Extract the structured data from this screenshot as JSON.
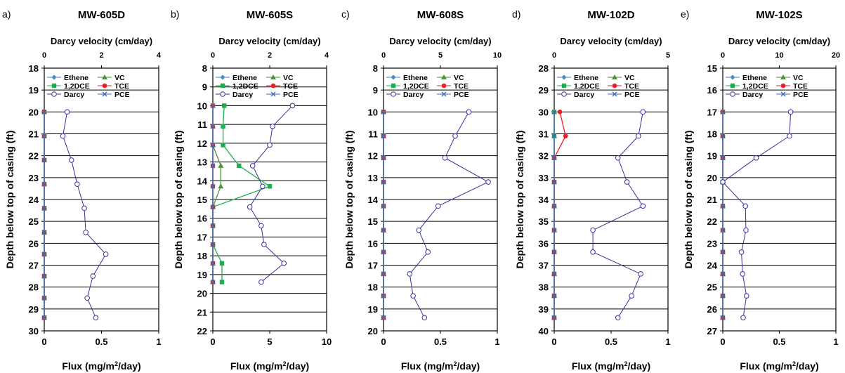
{
  "colors": {
    "ethene": "#4a86c0",
    "vc": "#4e8f3b",
    "dce": "#1fae4f",
    "tce": "#ee1c24",
    "darcy": "#333399",
    "pce": "#3b6fb5",
    "grid": "#000000"
  },
  "legend_labels": [
    "Ethene",
    "VC",
    "1,2DCE",
    "TCE",
    "Darcy",
    "PCE"
  ],
  "chart_data": [
    {
      "type": "line",
      "panel_label": "a)",
      "title": "MW-605D",
      "xlabel_top": "Darcy velocity (cm/day)",
      "xlabel_bottom": "Flux (mg/m²/day)",
      "ylabel": "Depth below top of casing (ft)",
      "ylim": [
        18,
        30
      ],
      "yticks": [
        18,
        19,
        20,
        21,
        22,
        23,
        24,
        25,
        26,
        27,
        28,
        29,
        30
      ],
      "xlim_top": [
        0,
        4
      ],
      "xticks_top": [
        0,
        2,
        4
      ],
      "xlim_bottom": [
        0,
        1
      ],
      "xticks_bottom": [
        0,
        0.5,
        1
      ],
      "xticklabels_bottom": [
        "0",
        "0.5",
        "1"
      ],
      "series": [
        {
          "name": "Ethene",
          "axis": "bottom",
          "depth": [
            20,
            21.1,
            22.2,
            23.3,
            24.4,
            25.5,
            26.5,
            27.5,
            28.5,
            29.4
          ],
          "values": [
            0,
            0,
            0,
            0,
            0,
            0,
            0,
            0,
            0,
            0
          ]
        },
        {
          "name": "VC",
          "axis": "bottom",
          "depth": [
            20,
            21.1,
            22.2,
            23.3,
            24.4,
            25.5,
            26.5,
            27.5,
            28.5,
            29.4
          ],
          "values": [
            0,
            0,
            0,
            0,
            0,
            0,
            0,
            0,
            0,
            0
          ]
        },
        {
          "name": "1,2DCE",
          "axis": "bottom",
          "depth": [
            20,
            21.1,
            22.2,
            23.3,
            24.4,
            25.5,
            26.5,
            27.5,
            28.5,
            29.4
          ],
          "values": [
            0,
            0,
            0,
            0,
            0,
            0,
            0,
            0,
            0,
            0
          ]
        },
        {
          "name": "TCE",
          "axis": "bottom",
          "depth": [
            20,
            21.1,
            22.2,
            23.3,
            24.4,
            25.5,
            26.5,
            27.5,
            28.5,
            29.4
          ],
          "values": [
            0,
            0,
            0,
            0,
            0,
            0,
            0,
            0,
            0,
            0
          ]
        },
        {
          "name": "PCE",
          "axis": "bottom",
          "depth": [
            20,
            21.1,
            22.2,
            23.3,
            24.4,
            25.5,
            26.5,
            27.5,
            28.5,
            29.4
          ],
          "values": [
            0,
            0,
            0,
            0,
            0,
            0,
            0,
            0,
            0,
            0
          ]
        },
        {
          "name": "Darcy",
          "axis": "top",
          "depth": [
            20,
            21.1,
            22.2,
            23.3,
            24.4,
            25.5,
            26.5,
            27.5,
            28.5,
            29.4
          ],
          "values": [
            0.8,
            0.65,
            0.95,
            1.15,
            1.4,
            1.45,
            2.15,
            1.7,
            1.5,
            1.8
          ]
        }
      ]
    },
    {
      "type": "line",
      "panel_label": "b)",
      "title": "MW-605S",
      "xlabel_top": "Darcy velocity (cm/day)",
      "xlabel_bottom": "Flux (mg/m²/day)",
      "ylabel": "Depth below top of casing (ft)",
      "ylim": [
        8,
        22
      ],
      "yticks": [
        8,
        9,
        10,
        11,
        12,
        13,
        14,
        15,
        16,
        17,
        18,
        19,
        20,
        21,
        22
      ],
      "xlim_top": [
        0,
        4
      ],
      "xticks_top": [
        0,
        2,
        4
      ],
      "xlim_bottom": [
        0,
        10
      ],
      "xticks_bottom": [
        0,
        5,
        10
      ],
      "xticklabels_bottom": [
        "0",
        "5",
        "10"
      ],
      "series": [
        {
          "name": "Ethene",
          "axis": "bottom",
          "depth": [
            10,
            11.1,
            12.1,
            13.2,
            14.3,
            15.4,
            16.4,
            17.4,
            18.4,
            19.4
          ],
          "values": [
            0,
            0,
            0,
            0,
            0,
            0,
            0,
            0,
            0,
            0
          ]
        },
        {
          "name": "VC",
          "axis": "bottom",
          "depth": [
            10,
            11.1,
            12.1,
            13.2,
            14.3,
            15.4,
            16.4,
            17.4,
            18.4,
            19.4
          ],
          "values": [
            0,
            0,
            0,
            0.7,
            0.7,
            0,
            0,
            0,
            0,
            0
          ]
        },
        {
          "name": "1,2DCE",
          "axis": "bottom",
          "depth": [
            10,
            11.1,
            12.1,
            13.2,
            14.3,
            15.4,
            16.4,
            17.4,
            18.4,
            19.4
          ],
          "values": [
            1.0,
            0.9,
            0.9,
            2.3,
            5.0,
            0,
            0,
            0,
            0.8,
            0.8
          ]
        },
        {
          "name": "TCE",
          "axis": "bottom",
          "depth": [
            10,
            11.1,
            12.1,
            13.2,
            14.3,
            15.4,
            16.4,
            17.4,
            18.4,
            19.4
          ],
          "values": [
            0,
            0,
            0,
            0,
            0,
            0,
            0,
            0,
            0,
            0
          ]
        },
        {
          "name": "PCE",
          "axis": "bottom",
          "depth": [
            10,
            11.1,
            12.1,
            13.2,
            14.3,
            15.4,
            16.4,
            17.4,
            18.4,
            19.4
          ],
          "values": [
            0,
            0,
            0,
            0,
            0,
            0,
            0,
            0,
            0,
            0
          ]
        },
        {
          "name": "Darcy",
          "axis": "top",
          "depth": [
            10,
            11.1,
            12.1,
            13.2,
            14.3,
            15.4,
            16.4,
            17.4,
            18.4,
            19.4
          ],
          "values": [
            2.8,
            2.1,
            2.0,
            1.4,
            1.75,
            1.3,
            1.7,
            1.8,
            2.5,
            1.7
          ]
        }
      ]
    },
    {
      "type": "line",
      "panel_label": "c)",
      "title": "MW-608S",
      "xlabel_top": "Darcy velocity (cm/day)",
      "xlabel_bottom": "Flux (mg/m²/day)",
      "ylabel": "Depth below top of casing (ft)",
      "ylim": [
        8,
        20
      ],
      "yticks": [
        8,
        9,
        10,
        11,
        12,
        13,
        14,
        15,
        16,
        17,
        18,
        19,
        20
      ],
      "xlim_top": [
        0,
        10
      ],
      "xticks_top": [
        0,
        5,
        10
      ],
      "xlim_bottom": [
        0,
        1
      ],
      "xticks_bottom": [
        0,
        0.5,
        1
      ],
      "xticklabels_bottom": [
        "0",
        "0.5",
        "1"
      ],
      "series": [
        {
          "name": "Ethene",
          "axis": "bottom",
          "depth": [
            10,
            11.1,
            12.1,
            13.2,
            14.3,
            15.4,
            16.4,
            17.4,
            18.4,
            19.4
          ],
          "values": [
            0,
            0,
            0,
            0,
            0,
            0,
            0,
            0,
            0,
            0
          ]
        },
        {
          "name": "VC",
          "axis": "bottom",
          "depth": [
            10,
            11.1,
            12.1,
            13.2,
            14.3,
            15.4,
            16.4,
            17.4,
            18.4,
            19.4
          ],
          "values": [
            0,
            0,
            0,
            0,
            0,
            0,
            0,
            0,
            0,
            0
          ]
        },
        {
          "name": "1,2DCE",
          "axis": "bottom",
          "depth": [
            10,
            11.1,
            12.1,
            13.2,
            14.3,
            15.4,
            16.4,
            17.4,
            18.4,
            19.4
          ],
          "values": [
            0,
            0,
            0,
            0,
            0,
            0,
            0,
            0,
            0,
            0
          ]
        },
        {
          "name": "TCE",
          "axis": "bottom",
          "depth": [
            10,
            11.1,
            12.1,
            13.2,
            14.3,
            15.4,
            16.4,
            17.4,
            18.4,
            19.4
          ],
          "values": [
            0,
            0,
            0,
            0,
            0,
            0,
            0,
            0,
            0,
            0
          ]
        },
        {
          "name": "PCE",
          "axis": "bottom",
          "depth": [
            10,
            11.1,
            12.1,
            13.2,
            14.3,
            15.4,
            16.4,
            17.4,
            18.4,
            19.4
          ],
          "values": [
            0,
            0,
            0,
            0,
            0,
            0,
            0,
            0,
            0,
            0
          ]
        },
        {
          "name": "Darcy",
          "axis": "top",
          "depth": [
            10,
            11.1,
            12.1,
            13.2,
            14.3,
            15.4,
            16.4,
            17.4,
            18.4,
            19.4
          ],
          "values": [
            7.5,
            6.3,
            5.4,
            9.2,
            4.8,
            3.1,
            3.9,
            2.3,
            2.6,
            3.6
          ]
        }
      ]
    },
    {
      "type": "line",
      "panel_label": "d)",
      "title": "MW-102D",
      "xlabel_top": "Darcy velocity (cm/day)",
      "xlabel_bottom": "Flux (mg/m²/day)",
      "ylabel": "Depth below top of casing (ft)",
      "ylim": [
        28,
        40
      ],
      "yticks": [
        28,
        29,
        30,
        31,
        32,
        33,
        34,
        35,
        36,
        37,
        38,
        39,
        40
      ],
      "xlim_top": [
        0,
        5
      ],
      "xticks_top": [
        0,
        5
      ],
      "xlim_bottom": [
        0,
        1
      ],
      "xticks_bottom": [
        0,
        0.5,
        1
      ],
      "xticklabels_bottom": [
        "0",
        "0.5",
        "1"
      ],
      "series": [
        {
          "name": "Ethene",
          "axis": "bottom",
          "depth": [
            30,
            31.1,
            32.1,
            33.2,
            34.3,
            35.4,
            36.4,
            37.4,
            38.4,
            39.4
          ],
          "values": [
            0,
            0,
            0,
            0,
            0,
            0,
            0,
            0,
            0,
            0
          ]
        },
        {
          "name": "VC",
          "axis": "bottom",
          "depth": [
            30,
            31.1,
            32.1,
            33.2,
            34.3,
            35.4,
            36.4,
            37.4,
            38.4,
            39.4
          ],
          "values": [
            0,
            0,
            0,
            0,
            0,
            0,
            0,
            0,
            0,
            0
          ]
        },
        {
          "name": "1,2DCE",
          "axis": "bottom",
          "depth": [
            30,
            31.1,
            32.1,
            33.2,
            34.3,
            35.4,
            36.4,
            37.4,
            38.4,
            39.4
          ],
          "values": [
            0,
            0,
            0,
            0,
            0,
            0,
            0,
            0,
            0,
            0
          ]
        },
        {
          "name": "TCE",
          "axis": "bottom",
          "depth": [
            30,
            31.1,
            32.1,
            33.2,
            34.3,
            35.4,
            36.4,
            37.4,
            38.4,
            39.4
          ],
          "values": [
            0.05,
            0.1,
            0,
            0,
            0,
            0,
            0,
            0,
            0,
            0
          ]
        },
        {
          "name": "PCE",
          "axis": "bottom",
          "depth": [
            30,
            31.1,
            32.1,
            33.2,
            34.3,
            35.4,
            36.4,
            37.4,
            38.4,
            39.4
          ],
          "values": [
            0,
            0,
            0,
            0,
            0,
            0,
            0,
            0,
            0,
            0
          ]
        },
        {
          "name": "Darcy",
          "axis": "top",
          "depth": [
            30,
            31.1,
            32.1,
            33.2,
            34.3,
            35.4,
            36.4,
            37.4,
            38.4,
            39.4
          ],
          "values": [
            3.9,
            3.7,
            2.8,
            3.2,
            3.9,
            1.7,
            1.7,
            3.8,
            3.4,
            2.8
          ]
        }
      ]
    },
    {
      "type": "line",
      "panel_label": "e)",
      "title": "MW-102S",
      "xlabel_top": "Darcy velocity (cm/day)",
      "xlabel_bottom": "Flux (mg/m²/day)",
      "ylabel": "Depth below top of casing (ft)",
      "ylim": [
        15,
        27
      ],
      "yticks": [
        15,
        16,
        17,
        18,
        19,
        20,
        21,
        22,
        23,
        24,
        25,
        26,
        27
      ],
      "xlim_top": [
        0,
        20
      ],
      "xticks_top": [
        0,
        10,
        20
      ],
      "xlim_bottom": [
        0,
        1
      ],
      "xticks_bottom": [
        0,
        0.5,
        1
      ],
      "xticklabels_bottom": [
        "0",
        "0.5",
        "1"
      ],
      "series": [
        {
          "name": "Ethene",
          "axis": "bottom",
          "depth": [
            17,
            18.1,
            19.1,
            20.2,
            21.3,
            22.4,
            23.4,
            24.4,
            25.4,
            26.4
          ],
          "values": [
            0,
            0,
            0,
            0,
            0,
            0,
            0,
            0,
            0,
            0
          ]
        },
        {
          "name": "VC",
          "axis": "bottom",
          "depth": [
            17,
            18.1,
            19.1,
            20.2,
            21.3,
            22.4,
            23.4,
            24.4,
            25.4,
            26.4
          ],
          "values": [
            0,
            0,
            0,
            0,
            0,
            0,
            0,
            0,
            0,
            0
          ]
        },
        {
          "name": "1,2DCE",
          "axis": "bottom",
          "depth": [
            17,
            18.1,
            19.1,
            20.2,
            21.3,
            22.4,
            23.4,
            24.4,
            25.4,
            26.4
          ],
          "values": [
            0,
            0,
            0,
            0,
            0,
            0,
            0,
            0,
            0,
            0
          ]
        },
        {
          "name": "TCE",
          "axis": "bottom",
          "depth": [
            17,
            18.1,
            19.1,
            20.2,
            21.3,
            22.4,
            23.4,
            24.4,
            25.4,
            26.4
          ],
          "values": [
            0,
            0,
            0,
            0,
            0,
            0,
            0,
            0,
            0,
            0
          ]
        },
        {
          "name": "PCE",
          "axis": "bottom",
          "depth": [
            17,
            18.1,
            19.1,
            20.2,
            21.3,
            22.4,
            23.4,
            24.4,
            25.4,
            26.4
          ],
          "values": [
            0,
            0,
            0,
            0,
            0,
            0,
            0,
            0,
            0,
            0
          ]
        },
        {
          "name": "Darcy",
          "axis": "top",
          "depth": [
            17,
            18.1,
            19.1,
            20.2,
            21.3,
            22.4,
            23.4,
            24.4,
            25.4,
            26.4
          ],
          "values": [
            12.0,
            11.8,
            5.9,
            0,
            4.0,
            4.1,
            3.3,
            3.5,
            4.2,
            3.6
          ]
        }
      ]
    }
  ]
}
